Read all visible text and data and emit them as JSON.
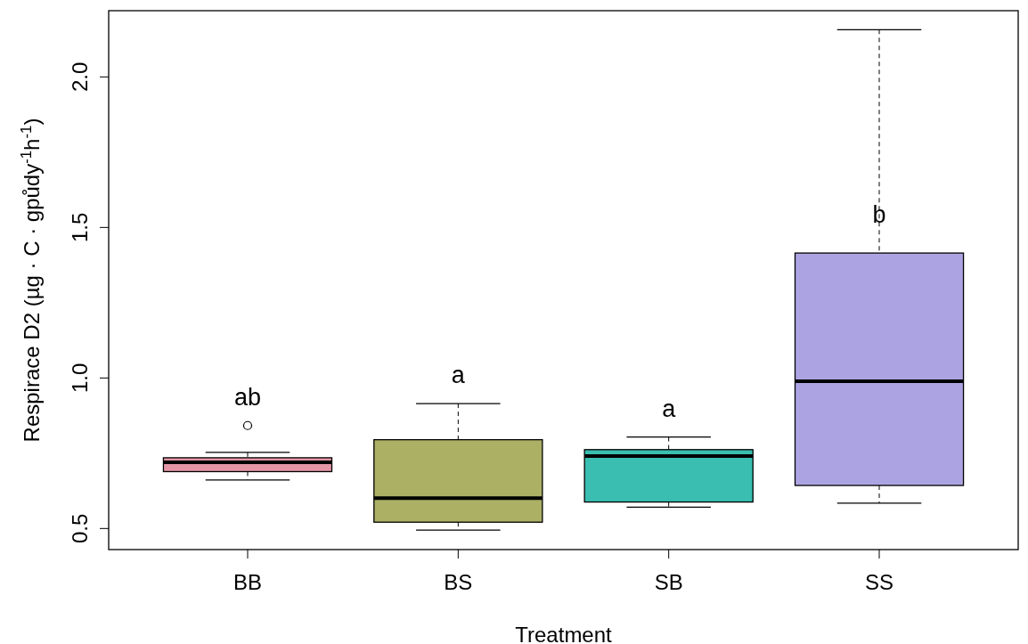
{
  "chart_data": {
    "type": "box",
    "xlabel": "Treatment",
    "ylabel": "Respirace D2 (µg · C · gpůdy$^{-1}$h$^{-1}$)",
    "categories": [
      "BB",
      "BS",
      "SB",
      "SS"
    ],
    "colors": [
      "#e495a5",
      "#abb065",
      "#39beb1",
      "#aca4e2"
    ],
    "boxes": [
      {
        "low": 0.661,
        "q1": 0.689,
        "median": 0.72,
        "q3": 0.735,
        "high": 0.753,
        "outliers": [
          0.842
        ]
      },
      {
        "low": 0.495,
        "q1": 0.521,
        "median": 0.601,
        "q3": 0.795,
        "high": 0.915
      },
      {
        "low": 0.571,
        "q1": 0.588,
        "median": 0.741,
        "q3": 0.762,
        "high": 0.804
      },
      {
        "low": 0.584,
        "q1": 0.643,
        "median": 0.989,
        "q3": 1.415,
        "high": 2.157
      }
    ],
    "ylim": [
      0.43,
      2.22
    ],
    "yticks": [
      {
        "value": 0.5,
        "label": "0.5"
      },
      {
        "value": 1,
        "label": "1.0"
      },
      {
        "value": 1.5,
        "label": "1.5"
      },
      {
        "value": 2,
        "label": "2.0"
      }
    ],
    "annotations": [
      "ab",
      "a",
      "a",
      "b"
    ]
  }
}
